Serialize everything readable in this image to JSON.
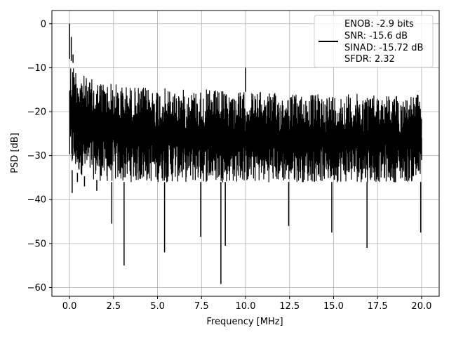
{
  "chart_data": {
    "type": "line",
    "title": "",
    "xlabel": "Frequency [MHz]",
    "ylabel": "PSD [dB]",
    "xlim": [
      -1.0,
      21.0
    ],
    "ylim": [
      -62.0,
      3.0
    ],
    "xticks": [
      0.0,
      2.5,
      5.0,
      7.5,
      10.0,
      12.5,
      15.0,
      17.5,
      20.0
    ],
    "xtick_labels": [
      "0.0",
      "2.5",
      "5.0",
      "7.5",
      "10.0",
      "12.5",
      "15.0",
      "17.5",
      "20.0"
    ],
    "yticks": [
      0,
      -10,
      -20,
      -30,
      -40,
      -50,
      -60
    ],
    "ytick_labels": [
      "0",
      "−10",
      "−20",
      "−30",
      "−40",
      "−50",
      "−60"
    ],
    "grid": true,
    "legend_position": "top-right",
    "legend_lines": [
      "ENOB: -2.9 bits",
      "SNR: -15.6 dB",
      "SINAD: -15.72 dB",
      "SFDR: 2.32"
    ],
    "series_color": "#000000",
    "series": [
      {
        "x": [
          0.0,
          0.05,
          0.1,
          0.15,
          0.2,
          0.25,
          0.35,
          0.45,
          0.6,
          0.85,
          1.15,
          1.55,
          2.4,
          3.1,
          5.4,
          5.6,
          7.45,
          8.6,
          8.85,
          10.0,
          10.05,
          12.45,
          14.9,
          16.9,
          19.95,
          20.0
        ],
        "y": [
          0.0,
          -25.0,
          -3.0,
          -38.5,
          -7.0,
          -30.0,
          -16.0,
          -36.0,
          -19.0,
          -37.0,
          -16.0,
          -38.0,
          -45.5,
          -55.0,
          -52.0,
          -25.0,
          -48.5,
          -59.2,
          -50.5,
          -10.0,
          -30.0,
          -46.0,
          -47.5,
          -51.0,
          -47.5,
          -31.0
        ]
      }
    ],
    "upper_envelope": [
      [
        0.0,
        -8.0
      ],
      [
        1.0,
        -12.5
      ],
      [
        2.0,
        -13.0
      ],
      [
        3.0,
        -14.0
      ],
      [
        4.0,
        -14.5
      ],
      [
        5.0,
        -14.5
      ],
      [
        6.0,
        -15.0
      ],
      [
        7.0,
        -15.0
      ],
      [
        8.0,
        -15.0
      ],
      [
        9.0,
        -15.5
      ],
      [
        10.0,
        -15.5
      ],
      [
        11.0,
        -15.5
      ],
      [
        12.0,
        -16.0
      ],
      [
        13.0,
        -16.0
      ],
      [
        14.0,
        -16.0
      ],
      [
        15.0,
        -16.0
      ],
      [
        16.0,
        -16.0
      ],
      [
        17.0,
        -16.0
      ],
      [
        18.0,
        -16.0
      ],
      [
        19.0,
        -16.5
      ],
      [
        20.0,
        -16.0
      ]
    ],
    "lower_envelope": [
      [
        0.0,
        -33.0
      ],
      [
        1.0,
        -35.0
      ],
      [
        2.0,
        -36.0
      ],
      [
        3.0,
        -36.0
      ],
      [
        4.0,
        -36.0
      ],
      [
        5.0,
        -36.0
      ],
      [
        6.0,
        -36.0
      ],
      [
        7.0,
        -36.0
      ],
      [
        8.0,
        -36.0
      ],
      [
        9.0,
        -36.0
      ],
      [
        10.0,
        -36.0
      ],
      [
        11.0,
        -36.0
      ],
      [
        12.0,
        -36.0
      ],
      [
        13.0,
        -36.0
      ],
      [
        14.0,
        -36.0
      ],
      [
        15.0,
        -36.0
      ],
      [
        16.0,
        -36.0
      ],
      [
        17.0,
        -36.0
      ],
      [
        18.0,
        -36.0
      ],
      [
        19.0,
        -36.0
      ],
      [
        20.0,
        -36.0
      ]
    ]
  }
}
